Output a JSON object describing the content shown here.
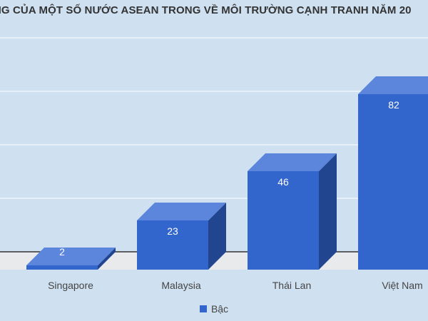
{
  "chart_data": {
    "type": "bar",
    "title": "NG CỦA MỘT SỐ NƯỚC ASEAN TRONG VỀ MÔI TRƯỜNG CẠNH TRANH NĂM 20",
    "categories": [
      "Singapore",
      "Malaysia",
      "Thái Lan",
      "Việt Nam"
    ],
    "series": [
      {
        "name": "Bậc",
        "values": [
          2,
          23,
          46,
          82
        ]
      }
    ],
    "data_labels": [
      "2",
      "23",
      "46",
      "82"
    ],
    "ylim": [
      0,
      100
    ],
    "grid": true,
    "three_d": true,
    "legend_position": "bottom",
    "colors": {
      "bar_front": "#3366cc",
      "bar_top": "#5b86dc",
      "bar_side": "#22458f",
      "floor": "#e8eaec",
      "background": "#cfe0f1",
      "grid": "#ffffff"
    }
  }
}
